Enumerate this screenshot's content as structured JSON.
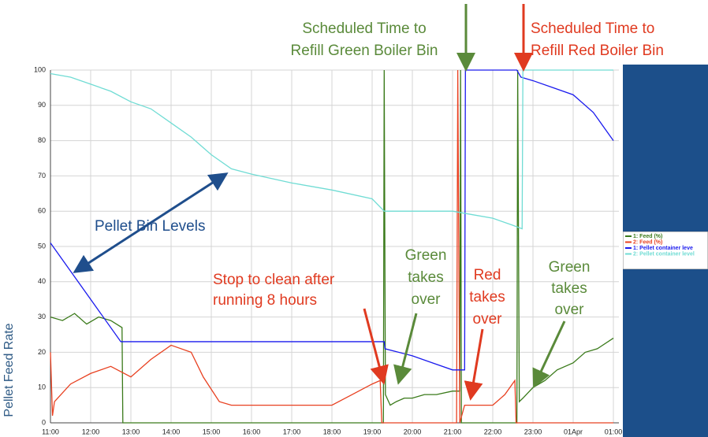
{
  "chart_data": {
    "type": "line",
    "y_axis_label": "Pellet Feed Rate",
    "xlim": [
      11,
      25
    ],
    "ylim": [
      0,
      100
    ],
    "xticks": [
      {
        "value": 11,
        "label": "11:00"
      },
      {
        "value": 12,
        "label": "12:00"
      },
      {
        "value": 13,
        "label": "13:00"
      },
      {
        "value": 14,
        "label": "14:00"
      },
      {
        "value": 15,
        "label": "15:00"
      },
      {
        "value": 16,
        "label": "16:00"
      },
      {
        "value": 17,
        "label": "17:00"
      },
      {
        "value": 18,
        "label": "18:00"
      },
      {
        "value": 19,
        "label": "19:00"
      },
      {
        "value": 20,
        "label": "20:00"
      },
      {
        "value": 21,
        "label": "21:00"
      },
      {
        "value": 22,
        "label": "22:00"
      },
      {
        "value": 23,
        "label": "23:00"
      },
      {
        "value": 24,
        "label": "01Apr"
      },
      {
        "value": 25,
        "label": "01:00"
      }
    ],
    "yticks": [
      0,
      10,
      20,
      30,
      40,
      50,
      60,
      70,
      80,
      90,
      100
    ],
    "grid": true,
    "legend": "right",
    "series": [
      {
        "name": "1: Feed (%)",
        "color": "#3a7a1a",
        "x": [
          11,
          11.3,
          11.6,
          11.9,
          12.2,
          12.5,
          12.78,
          12.8,
          19.28,
          19.3,
          19.33,
          19.45,
          19.6,
          19.8,
          20,
          20.3,
          20.6,
          21,
          21.18,
          21.2,
          21.22,
          22.6,
          22.62,
          22.66,
          22.75,
          23,
          23.3,
          23.6,
          24,
          24.3,
          24.6,
          25
        ],
        "values": [
          30,
          29,
          31,
          28,
          30,
          29,
          27,
          0,
          0,
          100,
          8,
          5,
          6,
          7,
          7,
          8,
          8,
          9,
          9,
          100,
          0,
          0,
          100,
          6,
          7,
          10,
          12,
          15,
          17,
          20,
          21,
          24
        ]
      },
      {
        "name": "2: Feed (%)",
        "color": "#e84020",
        "x": [
          11,
          11.05,
          11.1,
          11.5,
          12,
          12.5,
          13,
          13.5,
          14,
          14.5,
          14.8,
          15.2,
          15.5,
          17,
          18,
          18.5,
          19,
          19.2,
          19.24,
          21.1,
          21.13,
          21.18,
          21.3,
          22,
          22.3,
          22.55,
          22.58,
          25
        ],
        "values": [
          20,
          2,
          6,
          11,
          14,
          16,
          13,
          18,
          22,
          20,
          13,
          6,
          5,
          5,
          5,
          8,
          11,
          12,
          0,
          0,
          100,
          0,
          5,
          5,
          8,
          12,
          0,
          0
        ]
      },
      {
        "name": "1: Pellet container leve",
        "color": "#1a1aee",
        "x": [
          11,
          12.75,
          19.3,
          19.32,
          20,
          20.5,
          21,
          21.3,
          21.32,
          22.6,
          22.7,
          23,
          23.5,
          24,
          24.5,
          25
        ],
        "values": [
          51,
          23,
          23,
          21,
          19,
          17,
          15,
          15,
          100,
          100,
          98,
          97,
          95,
          93,
          88,
          80
        ]
      },
      {
        "name": "2: Pellet container level",
        "color": "#70dcd4",
        "x": [
          11,
          11.5,
          12,
          12.5,
          13,
          13.5,
          14,
          14.5,
          15,
          15.5,
          16,
          17,
          18,
          19,
          19.3,
          20,
          21,
          21.5,
          22,
          22.5,
          22.73,
          22.75,
          25
        ],
        "values": [
          99,
          98,
          96,
          94,
          91,
          89,
          85,
          81,
          76,
          72,
          70.5,
          68,
          66,
          63.5,
          60,
          60,
          60,
          59,
          58,
          56,
          55,
          100,
          100
        ]
      }
    ],
    "annotations": [
      {
        "color": "#5a8a3a",
        "lines": [
          "Scheduled Time to",
          "Refill Green Boiler Bin"
        ]
      },
      {
        "color": "#e03a20",
        "lines": [
          "Scheduled Time to",
          "Refill Red Boiler Bin"
        ]
      },
      {
        "color": "#1f4e8c",
        "lines": [
          "Pellet Bin Levels"
        ]
      },
      {
        "color": "#e03a20",
        "lines": [
          "Stop to clean after",
          "running 8 hours"
        ]
      },
      {
        "color": "#5a8a3a",
        "lines": [
          "Green",
          "takes",
          "over"
        ]
      },
      {
        "color": "#e03a20",
        "lines": [
          "Red",
          "takes",
          "over"
        ]
      },
      {
        "color": "#5a8a3a",
        "lines": [
          "Green",
          "takes",
          "over"
        ]
      }
    ]
  }
}
